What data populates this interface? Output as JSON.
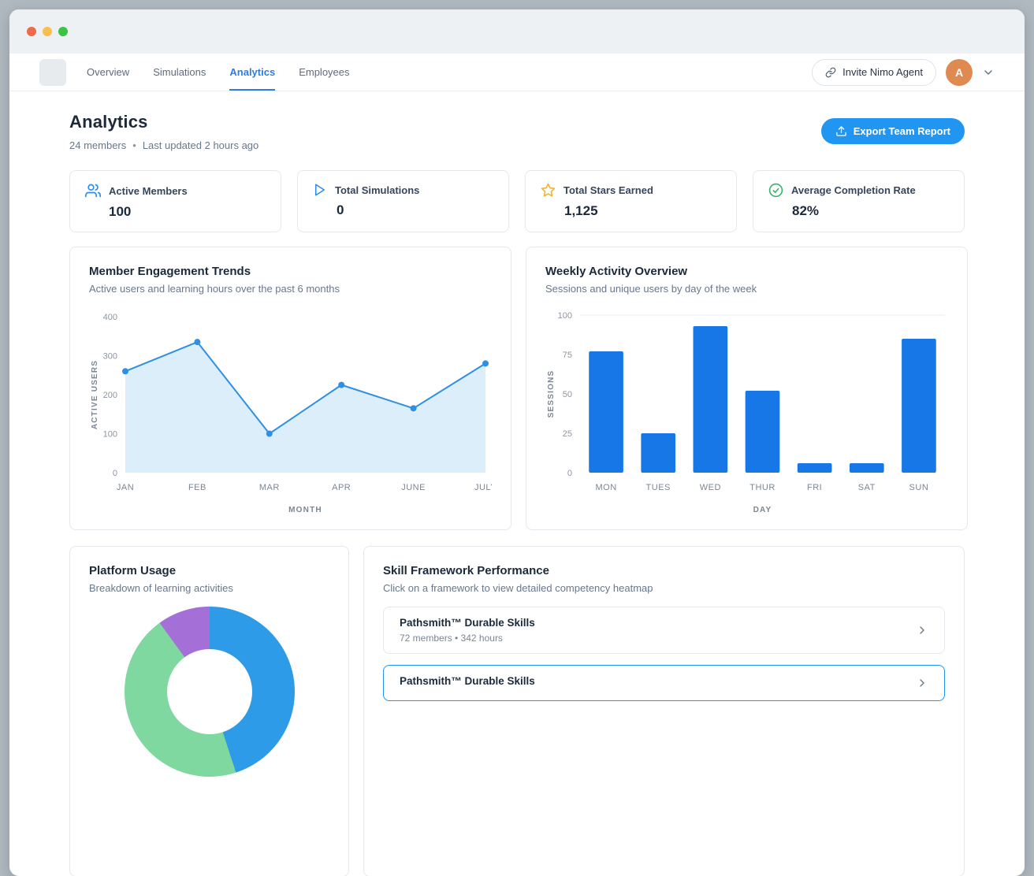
{
  "nav": {
    "tabs": [
      {
        "label": "Overview",
        "active": false
      },
      {
        "label": "Simulations",
        "active": false
      },
      {
        "label": "Analytics",
        "active": true
      },
      {
        "label": "Employees",
        "active": false
      }
    ],
    "invite_label": "Invite Nimo Agent",
    "avatar_initial": "A"
  },
  "header": {
    "title": "Analytics",
    "members": "24 members",
    "separator": "•",
    "updated": "Last updated 2 hours ago",
    "export_label": "Export Team Report"
  },
  "stats": [
    {
      "icon": "users-icon",
      "label": "Active Members",
      "value": "100",
      "icon_color": "#2b8de9"
    },
    {
      "icon": "play-icon",
      "label": "Total Simulations",
      "value": "0",
      "icon_color": "#2b8de9"
    },
    {
      "icon": "star-icon",
      "label": "Total Stars Earned",
      "value": "1,125",
      "icon_color": "#f0b429"
    },
    {
      "icon": "check-circle-icon",
      "label": "Average Completion Rate",
      "value": "82%",
      "icon_color": "#35b369"
    }
  ],
  "chart_data": [
    {
      "type": "area",
      "title": "Member Engagement Trends",
      "subtitle": "Active users and learning hours over the past 6 months",
      "categories": [
        "JAN",
        "FEB",
        "MAR",
        "APR",
        "JUNE",
        "JULY"
      ],
      "values": [
        260,
        335,
        100,
        225,
        165,
        280
      ],
      "xlabel": "MONTH",
      "ylabel": "ACTIVE USERS",
      "ylim": [
        0,
        400
      ],
      "yticks": [
        0,
        100,
        200,
        300,
        400
      ],
      "line_color": "#2e90e5",
      "fill_color": "#ddeefb",
      "grid": false
    },
    {
      "type": "bar",
      "title": "Weekly Activity Overview",
      "subtitle": "Sessions and unique users by day of the week",
      "categories": [
        "MON",
        "TUES",
        "WED",
        "THUR",
        "FRI",
        "SAT",
        "SUN"
      ],
      "values": [
        77,
        25,
        93,
        52,
        6,
        6,
        85
      ],
      "xlabel": "DAY",
      "ylabel": "SESSIONS",
      "ylim": [
        0,
        100
      ],
      "yticks": [
        0,
        25,
        50,
        75,
        100
      ],
      "bar_color": "#1877e6",
      "grid": false
    },
    {
      "type": "pie",
      "title": "Platform Usage",
      "subtitle": "Breakdown of learning activities",
      "donut": true,
      "slices": [
        {
          "name": "blue-segment",
          "value": 45,
          "color": "#2e9be8"
        },
        {
          "name": "green-segment",
          "value": 45,
          "color": "#7fd8a0"
        },
        {
          "name": "purple-segment",
          "value": 10,
          "color": "#a46fd6"
        }
      ]
    }
  ],
  "skills": {
    "title": "Skill Framework Performance",
    "subtitle": "Click on a framework to view detailed competency heatmap",
    "items": [
      {
        "name": "Pathsmith™ Durable Skills",
        "meta": "72 members  •  342 hours",
        "selected": false
      },
      {
        "name": "Pathsmith™ Durable Skills",
        "meta": "",
        "selected": true
      }
    ]
  }
}
